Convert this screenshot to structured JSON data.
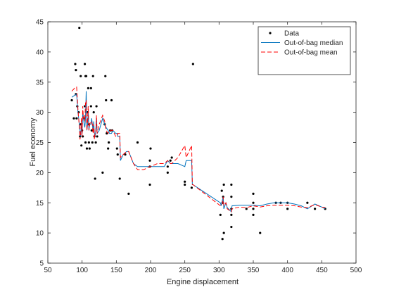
{
  "chart_data": {
    "type": "scatter",
    "xlabel": "Engine displacement",
    "ylabel": "Fuel economy",
    "xlim": [
      50,
      500
    ],
    "ylim": [
      5,
      45
    ],
    "xticks": [
      50,
      100,
      150,
      200,
      250,
      300,
      350,
      400,
      450,
      500
    ],
    "yticks": [
      5,
      10,
      15,
      20,
      25,
      30,
      35,
      40,
      45
    ],
    "grid": false,
    "legend_position": "top-right",
    "series": [
      {
        "name": "Data",
        "style": "points",
        "color": "#000000",
        "points": [
          [
            85,
            32
          ],
          [
            88,
            29
          ],
          [
            90,
            38
          ],
          [
            91,
            37
          ],
          [
            91,
            33
          ],
          [
            92,
            29
          ],
          [
            93,
            31
          ],
          [
            95,
            30
          ],
          [
            96,
            44
          ],
          [
            97,
            26
          ],
          [
            98,
            28
          ],
          [
            98,
            36
          ],
          [
            99,
            24.5
          ],
          [
            100,
            27
          ],
          [
            101,
            26
          ],
          [
            103,
            29
          ],
          [
            104,
            38
          ],
          [
            104,
            31
          ],
          [
            105,
            36
          ],
          [
            105,
            25
          ],
          [
            106,
            36
          ],
          [
            107,
            24
          ],
          [
            108,
            30
          ],
          [
            109,
            34
          ],
          [
            110,
            28
          ],
          [
            110,
            25
          ],
          [
            111,
            24
          ],
          [
            113,
            34
          ],
          [
            113,
            31
          ],
          [
            114,
            27
          ],
          [
            115,
            25
          ],
          [
            116,
            36
          ],
          [
            117,
            30
          ],
          [
            118,
            26
          ],
          [
            119,
            19
          ],
          [
            120,
            25
          ],
          [
            121,
            31
          ],
          [
            122,
            26
          ],
          [
            130,
            20
          ],
          [
            133,
            28
          ],
          [
            134,
            36
          ],
          [
            135,
            32
          ],
          [
            136,
            26.5
          ],
          [
            138,
            24
          ],
          [
            139,
            25
          ],
          [
            141,
            27
          ],
          [
            143,
            32
          ],
          [
            144,
            27
          ],
          [
            151,
            24
          ],
          [
            152,
            23
          ],
          [
            155,
            19
          ],
          [
            163,
            23
          ],
          [
            168,
            16.5
          ],
          [
            181,
            25
          ],
          [
            199,
            18
          ],
          [
            199,
            21
          ],
          [
            199,
            22
          ],
          [
            200,
            24
          ],
          [
            225,
            20
          ],
          [
            225,
            21
          ],
          [
            229,
            22
          ],
          [
            231,
            22.5
          ],
          [
            250,
            18.5
          ],
          [
            250,
            18
          ],
          [
            260,
            17.5
          ],
          [
            262,
            38
          ],
          [
            302,
            13
          ],
          [
            304,
            17
          ],
          [
            305,
            9
          ],
          [
            305,
            15
          ],
          [
            306,
            16
          ],
          [
            307,
            10
          ],
          [
            307,
            18
          ],
          [
            318,
            18
          ],
          [
            318,
            11
          ],
          [
            318,
            13
          ],
          [
            318,
            14
          ],
          [
            318,
            16
          ],
          [
            340,
            14
          ],
          [
            350,
            13
          ],
          [
            350,
            14
          ],
          [
            350,
            15
          ],
          [
            350,
            16.5
          ],
          [
            360,
            10
          ],
          [
            383,
            15
          ],
          [
            390,
            15
          ],
          [
            400,
            14
          ],
          [
            400,
            15
          ],
          [
            429,
            15
          ],
          [
            440,
            14
          ],
          [
            455,
            14
          ]
        ]
      },
      {
        "name": "Out-of-bag median",
        "style": "line",
        "color": "#0072BD",
        "points": [
          [
            85,
            32.5
          ],
          [
            89,
            32.8
          ],
          [
            92,
            33
          ],
          [
            94,
            30
          ],
          [
            96,
            28
          ],
          [
            97,
            27
          ],
          [
            98,
            26
          ],
          [
            99,
            28
          ],
          [
            100,
            26.5
          ],
          [
            101,
            30
          ],
          [
            102,
            29
          ],
          [
            103,
            28
          ],
          [
            104,
            27.5
          ],
          [
            105,
            29
          ],
          [
            106,
            33.5
          ],
          [
            107,
            27
          ],
          [
            108,
            28
          ],
          [
            109,
            30
          ],
          [
            110,
            27
          ],
          [
            111,
            28
          ],
          [
            113,
            28
          ],
          [
            114,
            29
          ],
          [
            115,
            28
          ],
          [
            116,
            27
          ],
          [
            117,
            28.5
          ],
          [
            118,
            26.5
          ],
          [
            119,
            26
          ],
          [
            120,
            27
          ],
          [
            121,
            29
          ],
          [
            122,
            26.5
          ],
          [
            125,
            27
          ],
          [
            130,
            29
          ],
          [
            133,
            28
          ],
          [
            135,
            27.5
          ],
          [
            138,
            27
          ],
          [
            140,
            26.5
          ],
          [
            143,
            26.5
          ],
          [
            145,
            27
          ],
          [
            149,
            26.5
          ],
          [
            151,
            26.5
          ],
          [
            152,
            26
          ],
          [
            155,
            26
          ],
          [
            156,
            22
          ],
          [
            160,
            23
          ],
          [
            165,
            23.5
          ],
          [
            168,
            23.5
          ],
          [
            175,
            21.5
          ],
          [
            181,
            21
          ],
          [
            190,
            21
          ],
          [
            199,
            21
          ],
          [
            200,
            21
          ],
          [
            210,
            21
          ],
          [
            220,
            21
          ],
          [
            225,
            22
          ],
          [
            229,
            21.5
          ],
          [
            231,
            21.5
          ],
          [
            240,
            21.5
          ],
          [
            250,
            21
          ],
          [
            252,
            22
          ],
          [
            260,
            22
          ],
          [
            261,
            18
          ],
          [
            262,
            18
          ],
          [
            302,
            15
          ],
          [
            303,
            14.5
          ],
          [
            305,
            15.5
          ],
          [
            306,
            16
          ],
          [
            307,
            14
          ],
          [
            310,
            15
          ],
          [
            312,
            14.2
          ],
          [
            318,
            13.5
          ],
          [
            319,
            14.5
          ],
          [
            330,
            14.6
          ],
          [
            340,
            14.6
          ],
          [
            350,
            14.6
          ],
          [
            360,
            14.5
          ],
          [
            370,
            14.8
          ],
          [
            380,
            15
          ],
          [
            390,
            15
          ],
          [
            400,
            15
          ],
          [
            410,
            14.8
          ],
          [
            420,
            14.5
          ],
          [
            429,
            14
          ],
          [
            440,
            14.8
          ],
          [
            450,
            14.3
          ],
          [
            455,
            14
          ]
        ]
      },
      {
        "name": "Out-of-bag mean",
        "style": "dashed",
        "color": "#FF0000",
        "points": [
          [
            85,
            33.5
          ],
          [
            89,
            34
          ],
          [
            92,
            34.2
          ],
          [
            94,
            30.5
          ],
          [
            96,
            27.5
          ],
          [
            97,
            25.5
          ],
          [
            98,
            26.5
          ],
          [
            99,
            29
          ],
          [
            100,
            26
          ],
          [
            101,
            31
          ],
          [
            102,
            29
          ],
          [
            103,
            29.5
          ],
          [
            104,
            28.5
          ],
          [
            105,
            31.5
          ],
          [
            106,
            32
          ],
          [
            107,
            27
          ],
          [
            108,
            29
          ],
          [
            109,
            31
          ],
          [
            110,
            27
          ],
          [
            111,
            28
          ],
          [
            113,
            28.5
          ],
          [
            114,
            28.5
          ],
          [
            115,
            28
          ],
          [
            116,
            26.5
          ],
          [
            117,
            28
          ],
          [
            118,
            25.5
          ],
          [
            119,
            26.5
          ],
          [
            120,
            26.5
          ],
          [
            121,
            29.5
          ],
          [
            122,
            26.5
          ],
          [
            125,
            28
          ],
          [
            130,
            29.5
          ],
          [
            133,
            28.5
          ],
          [
            135,
            27
          ],
          [
            138,
            26.5
          ],
          [
            140,
            27
          ],
          [
            143,
            27
          ],
          [
            145,
            27
          ],
          [
            149,
            26
          ],
          [
            151,
            26
          ],
          [
            152,
            26.5
          ],
          [
            155,
            26.5
          ],
          [
            156,
            22.5
          ],
          [
            160,
            23
          ],
          [
            165,
            23.5
          ],
          [
            168,
            23.5
          ],
          [
            175,
            21.5
          ],
          [
            181,
            20.5
          ],
          [
            190,
            20.5
          ],
          [
            199,
            21
          ],
          [
            200,
            21
          ],
          [
            210,
            21.5
          ],
          [
            220,
            21.5
          ],
          [
            225,
            22
          ],
          [
            229,
            21.5
          ],
          [
            231,
            21.5
          ],
          [
            240,
            22.5
          ],
          [
            250,
            24.5
          ],
          [
            252,
            22.5
          ],
          [
            260,
            24.5
          ],
          [
            261,
            18
          ],
          [
            262,
            18
          ],
          [
            302,
            14.5
          ],
          [
            303,
            14.5
          ],
          [
            305,
            15
          ],
          [
            306,
            16
          ],
          [
            307,
            14.5
          ],
          [
            310,
            15
          ],
          [
            312,
            14
          ],
          [
            318,
            13.5
          ],
          [
            319,
            14
          ],
          [
            330,
            14.3
          ],
          [
            340,
            14.2
          ],
          [
            350,
            14.5
          ],
          [
            360,
            14.3
          ],
          [
            370,
            14.5
          ],
          [
            380,
            14.6
          ],
          [
            390,
            14.6
          ],
          [
            400,
            14.6
          ],
          [
            410,
            14.5
          ],
          [
            420,
            14.3
          ],
          [
            429,
            14.2
          ],
          [
            440,
            14.7
          ],
          [
            450,
            14.3
          ],
          [
            455,
            14.2
          ]
        ]
      }
    ]
  }
}
